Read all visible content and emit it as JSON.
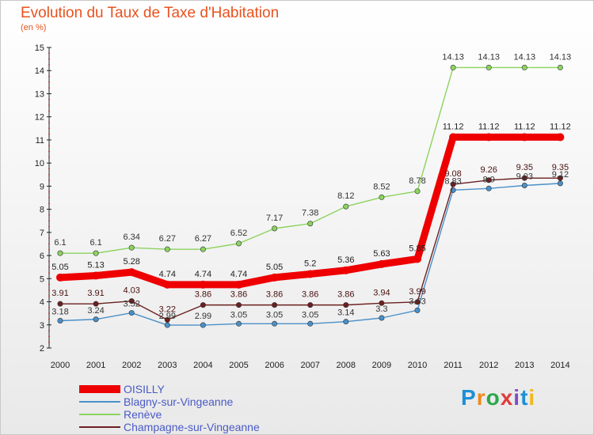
{
  "title": "Evolution du Taux de Taxe d'Habitation",
  "subtitle": "(en %)",
  "logo": "Proxiti",
  "colors": {
    "title": "#e8521f",
    "oisilly": "#ee0000",
    "blagny": "#4a90c8",
    "reneve": "#8cd35f",
    "champagne": "#6b2020",
    "legend_text": "#4a5bc6"
  },
  "chart_data": {
    "type": "line",
    "title": "Evolution du Taux de Taxe d'Habitation",
    "ylabel": "(en %)",
    "xlabel": "",
    "x": [
      "2000",
      "2001",
      "2002",
      "2003",
      "2004",
      "2005",
      "2006",
      "2007",
      "2008",
      "2009",
      "2010",
      "2011",
      "2012",
      "2013",
      "2014"
    ],
    "ylim": [
      2,
      15
    ],
    "yticks": [
      2,
      3,
      4,
      5,
      6,
      7,
      8,
      9,
      10,
      11,
      12,
      13,
      14,
      15
    ],
    "grid": false,
    "legend_position": "bottom-left",
    "series": [
      {
        "name": "OISILLY",
        "key": "oisilly",
        "values": [
          5.05,
          5.13,
          5.28,
          4.74,
          4.74,
          4.74,
          5.05,
          5.2,
          5.36,
          5.63,
          5.85,
          11.12,
          11.12,
          11.12,
          11.12
        ],
        "labels": [
          "5.05",
          "5.13",
          "5.28",
          "4.74",
          "4.74",
          "4.74",
          "5.05",
          "5.2",
          "5.36",
          "5.63",
          "5.85",
          "11.12",
          "11.12",
          "11.12",
          "11.12"
        ]
      },
      {
        "name": "Blagny-sur-Vingeanne",
        "key": "blagny",
        "values": [
          3.18,
          3.24,
          3.52,
          2.99,
          2.99,
          3.05,
          3.05,
          3.05,
          3.14,
          3.3,
          3.63,
          8.83,
          8.9,
          9.03,
          9.12
        ],
        "labels": [
          "3.18",
          "3.24",
          "3.52",
          "2.99",
          "2.99",
          "3.05",
          "3.05",
          "3.05",
          "3.14",
          "3.3",
          "3.63",
          "8.83",
          "8.9",
          "9.03",
          "9.12"
        ]
      },
      {
        "name": "Renève",
        "key": "reneve",
        "values": [
          6.1,
          6.1,
          6.34,
          6.27,
          6.27,
          6.52,
          7.17,
          7.38,
          8.12,
          8.52,
          8.78,
          14.13,
          14.13,
          14.13,
          14.13
        ],
        "labels": [
          "6.1",
          "6.1",
          "6.34",
          "6.27",
          "6.27",
          "6.52",
          "7.17",
          "7.38",
          "8.12",
          "8.52",
          "8.78",
          "14.13",
          "14.13",
          "14.13",
          "14.13"
        ]
      },
      {
        "name": "Champagne-sur-Vingeanne",
        "key": "champagne",
        "values": [
          3.91,
          3.91,
          4.03,
          3.22,
          3.86,
          3.86,
          3.86,
          3.86,
          3.86,
          3.94,
          3.99,
          9.08,
          9.26,
          9.35,
          9.35
        ],
        "labels": [
          "3.91",
          "3.91",
          "4.03",
          "3.22",
          "3.86",
          "3.86",
          "3.86",
          "3.86",
          "3.86",
          "3.94",
          "3.99",
          "9.08",
          "9.26",
          "9.35",
          "9.35"
        ]
      }
    ]
  }
}
